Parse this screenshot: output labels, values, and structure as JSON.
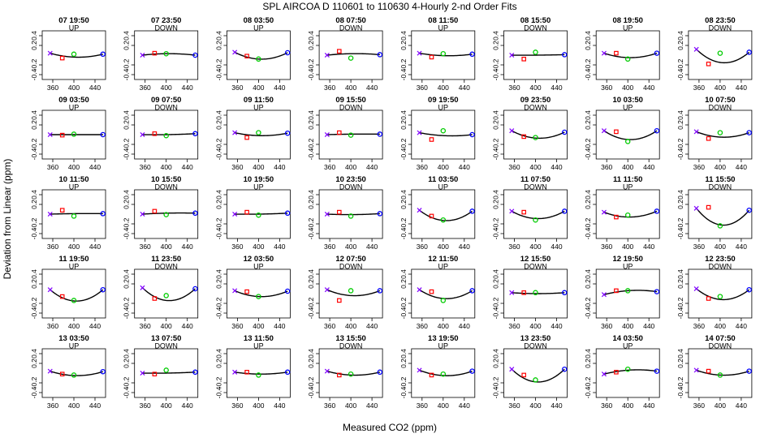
{
  "figure": {
    "title": "SPL   AIRCOA D   110601 to 110630   4-Hourly 2-nd Order Fits",
    "xlabel": "Measured CO2 (ppm)",
    "ylabel": "Deviation from Linear (ppm)"
  },
  "chart_data": {
    "type": "scatter",
    "layout": "small-multiples 5 rows x 8 columns",
    "xlim": [
      340,
      460
    ],
    "ylim": [
      -0.5,
      0.5
    ],
    "xticks": [
      "360",
      "400",
      "440"
    ],
    "yticks": [
      "-0.4",
      "-0.2",
      "0.2",
      "0.4"
    ],
    "point_colors": {
      "p1": "#8000ff",
      "p2": "#ff0000",
      "p3": "#00cc00",
      "p4": "#0000ff"
    },
    "points_x": [
      355,
      378,
      400,
      455
    ],
    "panels": [
      {
        "title": "07 19:50",
        "dir": "UP",
        "y": [
          0.04,
          -0.06,
          0.02,
          0.02
        ],
        "fit": [
          0.04,
          -0.04,
          0.02
        ]
      },
      {
        "title": "07 23:50",
        "dir": "DOWN",
        "y": [
          0.0,
          0.04,
          0.03,
          0.0
        ],
        "fit": [
          0.0,
          0.03,
          0.0
        ]
      },
      {
        "title": "08 03:50",
        "dir": "UP",
        "y": [
          0.06,
          -0.02,
          -0.08,
          0.05
        ],
        "fit": [
          0.06,
          -0.08,
          0.05
        ]
      },
      {
        "title": "08 07:50",
        "dir": "DOWN",
        "y": [
          0.0,
          0.08,
          -0.06,
          0.01
        ],
        "fit": [
          0.0,
          0.03,
          0.01
        ]
      },
      {
        "title": "08 11:50",
        "dir": "UP",
        "y": [
          0.04,
          -0.04,
          0.03,
          0.02
        ],
        "fit": [
          0.04,
          -0.01,
          0.02
        ]
      },
      {
        "title": "08 15:50",
        "dir": "DOWN",
        "y": [
          0.0,
          -0.08,
          0.06,
          0.01
        ],
        "fit": [
          0.0,
          0.0,
          0.01
        ]
      },
      {
        "title": "08 19:50",
        "dir": "UP",
        "y": [
          0.04,
          0.04,
          -0.08,
          0.04
        ],
        "fit": [
          0.04,
          -0.05,
          0.04
        ]
      },
      {
        "title": "08 23:50",
        "dir": "DOWN",
        "y": [
          0.12,
          -0.18,
          0.04,
          0.06
        ],
        "fit": [
          0.12,
          -0.15,
          0.06
        ]
      },
      {
        "title": "09 03:50",
        "dir": "UP",
        "y": [
          0.0,
          -0.01,
          0.01,
          0.0
        ],
        "fit": [
          0.0,
          0.0,
          0.0
        ]
      },
      {
        "title": "09 07:50",
        "dir": "DOWN",
        "y": [
          0.0,
          0.02,
          -0.02,
          0.02
        ],
        "fit": [
          0.0,
          0.0,
          0.02
        ]
      },
      {
        "title": "09 11:50",
        "dir": "UP",
        "y": [
          0.04,
          -0.06,
          0.04,
          0.03
        ],
        "fit": [
          0.04,
          -0.02,
          0.03
        ]
      },
      {
        "title": "09 15:50",
        "dir": "DOWN",
        "y": [
          0.0,
          0.04,
          -0.01,
          0.01
        ],
        "fit": [
          0.0,
          0.01,
          0.01
        ]
      },
      {
        "title": "09 19:50",
        "dir": "UP",
        "y": [
          0.04,
          -0.1,
          0.08,
          0.0
        ],
        "fit": [
          0.04,
          -0.02,
          0.0
        ]
      },
      {
        "title": "09 23:50",
        "dir": "DOWN",
        "y": [
          0.08,
          -0.04,
          -0.06,
          0.05
        ],
        "fit": [
          0.08,
          -0.07,
          0.05
        ]
      },
      {
        "title": "10 03:50",
        "dir": "UP",
        "y": [
          0.08,
          0.06,
          -0.14,
          0.08
        ],
        "fit": [
          0.08,
          -0.1,
          0.08
        ]
      },
      {
        "title": "10 07:50",
        "dir": "DOWN",
        "y": [
          0.06,
          -0.08,
          0.04,
          0.04
        ],
        "fit": [
          0.06,
          -0.05,
          0.04
        ]
      },
      {
        "title": "10 11:50",
        "dir": "UP",
        "y": [
          0.0,
          0.08,
          -0.04,
          0.01
        ],
        "fit": [
          0.0,
          0.01,
          0.01
        ]
      },
      {
        "title": "10 15:50",
        "dir": "DOWN",
        "y": [
          0.0,
          0.06,
          -0.01,
          0.02
        ],
        "fit": [
          0.0,
          0.02,
          0.02
        ]
      },
      {
        "title": "10 19:50",
        "dir": "UP",
        "y": [
          0.0,
          0.04,
          -0.02,
          0.02
        ],
        "fit": [
          0.0,
          0.0,
          0.02
        ]
      },
      {
        "title": "10 23:50",
        "dir": "DOWN",
        "y": [
          0.0,
          0.04,
          -0.04,
          0.01
        ],
        "fit": [
          0.0,
          -0.01,
          0.01
        ]
      },
      {
        "title": "11 03:50",
        "dir": "UP",
        "y": [
          0.08,
          -0.04,
          -0.12,
          0.06
        ],
        "fit": [
          0.08,
          -0.13,
          0.06
        ]
      },
      {
        "title": "11 07:50",
        "dir": "DOWN",
        "y": [
          0.06,
          0.04,
          -0.12,
          0.06
        ],
        "fit": [
          0.06,
          -0.09,
          0.06
        ]
      },
      {
        "title": "11 11:50",
        "dir": "UP",
        "y": [
          0.04,
          -0.06,
          -0.02,
          0.06
        ],
        "fit": [
          0.04,
          -0.06,
          0.06
        ]
      },
      {
        "title": "11 15:50",
        "dir": "DOWN",
        "y": [
          0.12,
          0.14,
          -0.24,
          0.08
        ],
        "fit": [
          0.12,
          -0.22,
          0.08
        ]
      },
      {
        "title": "11 19:50",
        "dir": "UP",
        "y": [
          0.08,
          -0.06,
          -0.14,
          0.08
        ],
        "fit": [
          0.08,
          -0.15,
          0.08
        ]
      },
      {
        "title": "11 23:50",
        "dir": "DOWN",
        "y": [
          0.12,
          -0.1,
          -0.04,
          0.1
        ],
        "fit": [
          0.12,
          -0.14,
          0.1
        ]
      },
      {
        "title": "12 03:50",
        "dir": "UP",
        "y": [
          0.06,
          0.04,
          -0.06,
          0.05
        ],
        "fit": [
          0.06,
          -0.06,
          0.05
        ]
      },
      {
        "title": "12 07:50",
        "dir": "DOWN",
        "y": [
          0.08,
          -0.14,
          0.06,
          0.06
        ],
        "fit": [
          0.08,
          -0.04,
          0.06
        ]
      },
      {
        "title": "12 11:50",
        "dir": "UP",
        "y": [
          0.08,
          0.04,
          -0.14,
          0.06
        ],
        "fit": [
          0.08,
          -0.1,
          0.06
        ]
      },
      {
        "title": "12 15:50",
        "dir": "DOWN",
        "y": [
          0.02,
          0.02,
          0.02,
          0.02
        ],
        "fit": [
          0.02,
          0.0,
          0.02
        ]
      },
      {
        "title": "12 19:50",
        "dir": "UP",
        "y": [
          -0.02,
          0.06,
          0.06,
          0.04
        ],
        "fit": [
          -0.02,
          0.06,
          0.04
        ]
      },
      {
        "title": "12 23:50",
        "dir": "DOWN",
        "y": [
          0.1,
          -0.1,
          -0.06,
          0.08
        ],
        "fit": [
          0.1,
          -0.12,
          0.08
        ]
      },
      {
        "title": "13 03:50",
        "dir": "UP",
        "y": [
          0.04,
          -0.02,
          -0.04,
          0.03
        ],
        "fit": [
          0.04,
          -0.05,
          0.03
        ]
      },
      {
        "title": "13 07:50",
        "dir": "DOWN",
        "y": [
          0.0,
          -0.02,
          0.06,
          0.02
        ],
        "fit": [
          0.0,
          0.0,
          0.02
        ]
      },
      {
        "title": "13 11:50",
        "dir": "UP",
        "y": [
          0.02,
          0.02,
          -0.04,
          0.02
        ],
        "fit": [
          0.02,
          -0.02,
          0.02
        ]
      },
      {
        "title": "13 15:50",
        "dir": "DOWN",
        "y": [
          0.04,
          -0.04,
          -0.02,
          0.02
        ],
        "fit": [
          0.04,
          -0.04,
          0.02
        ]
      },
      {
        "title": "13 19:50",
        "dir": "UP",
        "y": [
          0.06,
          -0.04,
          -0.02,
          0.04
        ],
        "fit": [
          0.06,
          -0.05,
          0.04
        ]
      },
      {
        "title": "13 23:50",
        "dir": "DOWN",
        "y": [
          0.08,
          -0.04,
          -0.14,
          0.08
        ],
        "fit": [
          0.08,
          -0.18,
          0.08
        ]
      },
      {
        "title": "14 03:50",
        "dir": "UP",
        "y": [
          -0.02,
          0.02,
          0.08,
          0.04
        ],
        "fit": [
          -0.02,
          0.06,
          0.04
        ]
      },
      {
        "title": "14 07:50",
        "dir": "DOWN",
        "y": [
          0.06,
          0.04,
          -0.04,
          0.04
        ],
        "fit": [
          0.06,
          -0.04,
          0.04
        ]
      }
    ]
  }
}
